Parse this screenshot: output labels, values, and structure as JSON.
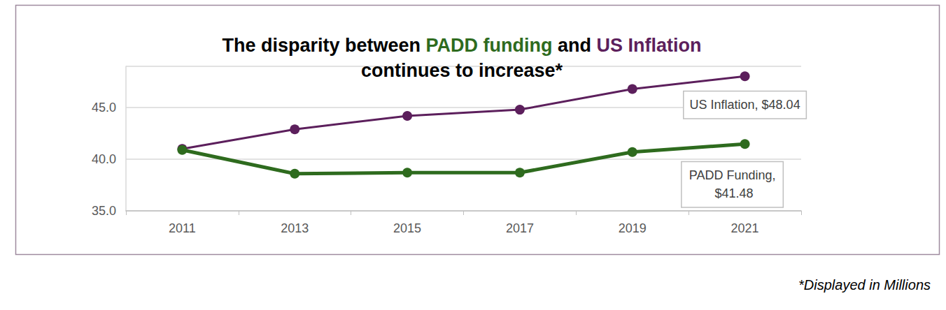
{
  "chart_data": {
    "type": "line",
    "title": [
      {
        "text": "The disparity between "
      },
      {
        "text": "PADD funding",
        "color": "#2e6b1e"
      },
      {
        "text": " and "
      },
      {
        "text": "US Inflation",
        "color": "#5c1f5c"
      },
      {
        "text": "\ncontinues to increase*"
      }
    ],
    "footnote": "*Displayed in Millions",
    "categories": [
      "2011",
      "2013",
      "2015",
      "2017",
      "2019",
      "2021"
    ],
    "series": [
      {
        "name": "US Inflation",
        "color": "#5c1f5c",
        "marker": "circle",
        "values": [
          41.0,
          42.9,
          44.2,
          44.8,
          46.8,
          48.04
        ],
        "annotation": "US Inflation, $48.04"
      },
      {
        "name": "PADD Funding",
        "color": "#2e6b1e",
        "marker": "circle",
        "values": [
          40.9,
          38.6,
          38.7,
          38.7,
          40.7,
          41.48
        ],
        "annotation": "PADD Funding, $41.48"
      }
    ],
    "ylim": [
      35,
      49
    ],
    "yticks": [
      {
        "value": 35,
        "label": "35.0"
      },
      {
        "value": 40,
        "label": "40.0"
      },
      {
        "value": 45,
        "label": "45.0"
      }
    ],
    "grid": true,
    "legend": "none"
  }
}
